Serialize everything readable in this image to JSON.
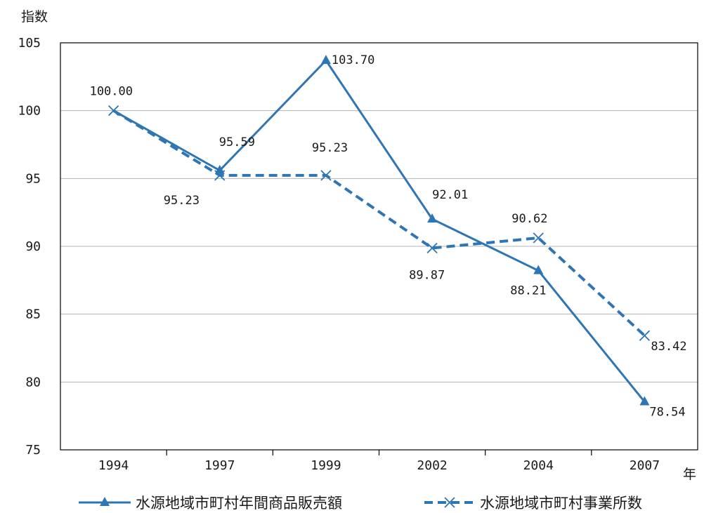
{
  "chart_data": {
    "type": "line",
    "ylabel": "指数",
    "xlabel": "年",
    "categories": [
      "1994",
      "1997",
      "1999",
      "2002",
      "2004",
      "2007"
    ],
    "ylim": [
      75,
      105
    ],
    "yticks": [
      "75",
      "80",
      "85",
      "90",
      "95",
      "100",
      "105"
    ],
    "grid": true,
    "legend_position": "bottom",
    "series": [
      {
        "name": "水源地域市町村年間商品販売額",
        "values": [
          100.0,
          95.59,
          103.7,
          92.01,
          88.21,
          78.54
        ],
        "labels": [
          "",
          "95.59",
          "103.70",
          "92.01",
          "88.21",
          "78.54"
        ],
        "color": "#2e75b6",
        "line_style": "solid",
        "marker": "triangle"
      },
      {
        "name": "水源地域市町村事業所数",
        "values": [
          100.0,
          95.23,
          95.23,
          89.87,
          90.62,
          83.42
        ],
        "labels": [
          "100.00",
          "95.23",
          "95.23",
          "89.87",
          "90.62",
          "83.42"
        ],
        "color": "#2e75b6",
        "line_style": "dashed",
        "marker": "x"
      }
    ]
  }
}
